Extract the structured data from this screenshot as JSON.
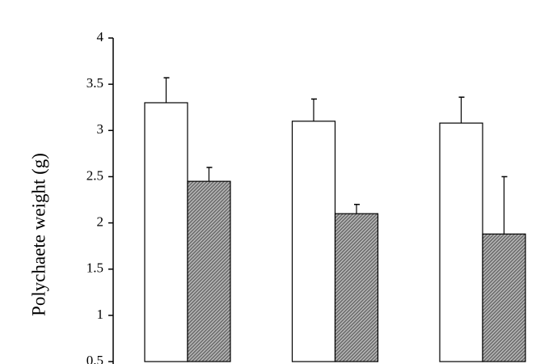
{
  "chart_data": {
    "type": "bar",
    "y_label": "Polychaete weight (g)",
    "categories": [
      null,
      null,
      null
    ],
    "series": [
      {
        "color": "#ffffff",
        "values": [
          3.3,
          3.1,
          3.08
        ],
        "errors": [
          0.27,
          0.24,
          0.28
        ]
      },
      {
        "color": "#6a6a6a",
        "values": [
          2.45,
          2.1,
          1.88
        ],
        "errors": [
          0.15,
          0.1,
          0.62
        ]
      }
    ],
    "ylim": [
      0.5,
      4
    ],
    "yticks": [
      0.5,
      1,
      1.5,
      2,
      2.5,
      3,
      3.5,
      4
    ],
    "grid": false
  }
}
